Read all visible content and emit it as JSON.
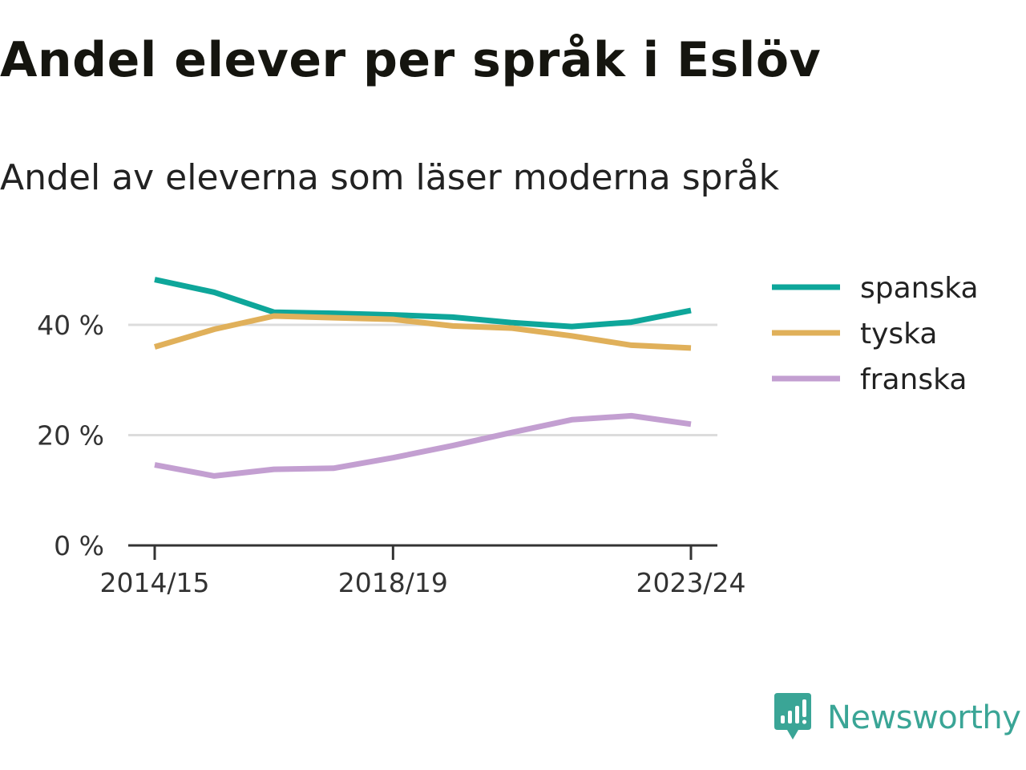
{
  "title": "Andel elever per språk i Eslöv",
  "subtitle": "Andel av eleverna som läser moderna språk",
  "brand": {
    "name": "Newsworthy",
    "icon": "newsworthy-logo-icon",
    "color": "#3aa596"
  },
  "chart_data": {
    "type": "line",
    "x": [
      "2014/15",
      "2015/16",
      "2016/17",
      "2017/18",
      "2018/19",
      "2019/20",
      "2020/21",
      "2021/22",
      "2022/23",
      "2023/24"
    ],
    "x_tick_labels": [
      "2014/15",
      "2018/19",
      "2023/24"
    ],
    "y_ticks": [
      0,
      20,
      40
    ],
    "y_tick_labels": [
      "0 %",
      "20 %",
      "40 %"
    ],
    "ylim": [
      0,
      50
    ],
    "grid": true,
    "legend_position": "right",
    "series": [
      {
        "name": "spanska",
        "color": "#0ea69a",
        "values": [
          48.2,
          45.9,
          42.3,
          42.1,
          41.8,
          41.4,
          40.4,
          39.7,
          40.5,
          42.6
        ]
      },
      {
        "name": "tyska",
        "color": "#e0b05a",
        "values": [
          36.0,
          39.2,
          41.6,
          41.3,
          41.0,
          39.8,
          39.4,
          38.0,
          36.3,
          35.8
        ]
      },
      {
        "name": "franska",
        "color": "#c39fd1",
        "values": [
          14.6,
          12.6,
          13.8,
          14.0,
          15.9,
          18.1,
          20.5,
          22.8,
          23.5,
          22.0
        ]
      }
    ]
  }
}
